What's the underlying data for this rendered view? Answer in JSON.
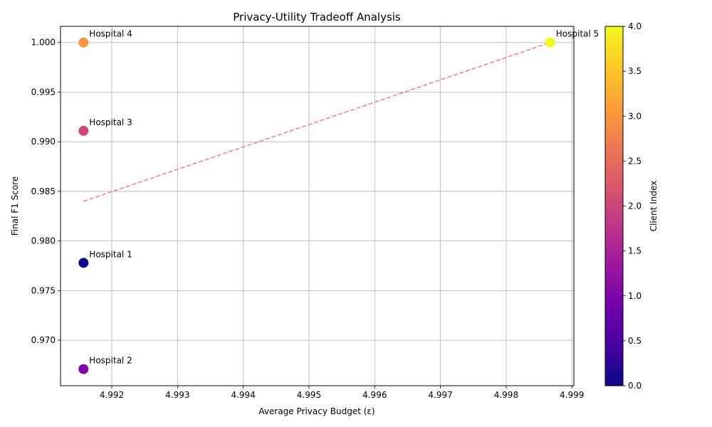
{
  "chart_data": {
    "type": "scatter",
    "title": "Privacy-Utility Tradeoff Analysis",
    "xlabel": "Average Privacy Budget (ε)",
    "ylabel": "Final F1 Score",
    "xlim": [
      4.99122,
      4.99903
    ],
    "ylim": [
      0.96542,
      1.00163
    ],
    "xticks": [
      4.992,
      4.993,
      4.994,
      4.995,
      4.996,
      4.997,
      4.998,
      4.999
    ],
    "yticks": [
      0.97,
      0.975,
      0.98,
      0.985,
      0.99,
      0.995,
      1.0
    ],
    "xtick_labels": [
      "4.992",
      "4.993",
      "4.994",
      "4.995",
      "4.996",
      "4.997",
      "4.998",
      "4.999"
    ],
    "ytick_labels": [
      "0.970",
      "0.975",
      "0.980",
      "0.985",
      "0.990",
      "0.995",
      "1.000"
    ],
    "grid": true,
    "points": [
      {
        "label": "Hospital 1",
        "x": 4.99157,
        "y": 0.9778,
        "client_index": 0,
        "color": "#0d0887"
      },
      {
        "label": "Hospital 2",
        "x": 4.99157,
        "y": 0.9671,
        "client_index": 1,
        "color": "#7e03a8"
      },
      {
        "label": "Hospital 3",
        "x": 4.99157,
        "y": 0.9911,
        "client_index": 2,
        "color": "#cc4778"
      },
      {
        "label": "Hospital 4",
        "x": 4.99157,
        "y": 1.0,
        "client_index": 3,
        "color": "#f89540"
      },
      {
        "label": "Hospital 5",
        "x": 4.99867,
        "y": 1.0,
        "client_index": 4,
        "color": "#f0f921"
      }
    ],
    "trend_line": {
      "x": [
        4.99157,
        4.99867
      ],
      "y": [
        0.984,
        1.0
      ],
      "color": "#f08080",
      "style": "dashed"
    },
    "colorbar": {
      "label": "Client Index",
      "range": [
        0,
        4
      ],
      "ticks": [
        0.0,
        0.5,
        1.0,
        1.5,
        2.0,
        2.5,
        3.0,
        3.5,
        4.0
      ],
      "tick_labels": [
        "0.0",
        "0.5",
        "1.0",
        "1.5",
        "2.0",
        "2.5",
        "3.0",
        "3.5",
        "4.0"
      ],
      "colormap": "plasma",
      "colors": [
        "#0d0887",
        "#46039f",
        "#7201a8",
        "#9c179e",
        "#bd3786",
        "#d8576b",
        "#ed7953",
        "#fb9f3a",
        "#fdca26",
        "#f0f921"
      ]
    }
  }
}
